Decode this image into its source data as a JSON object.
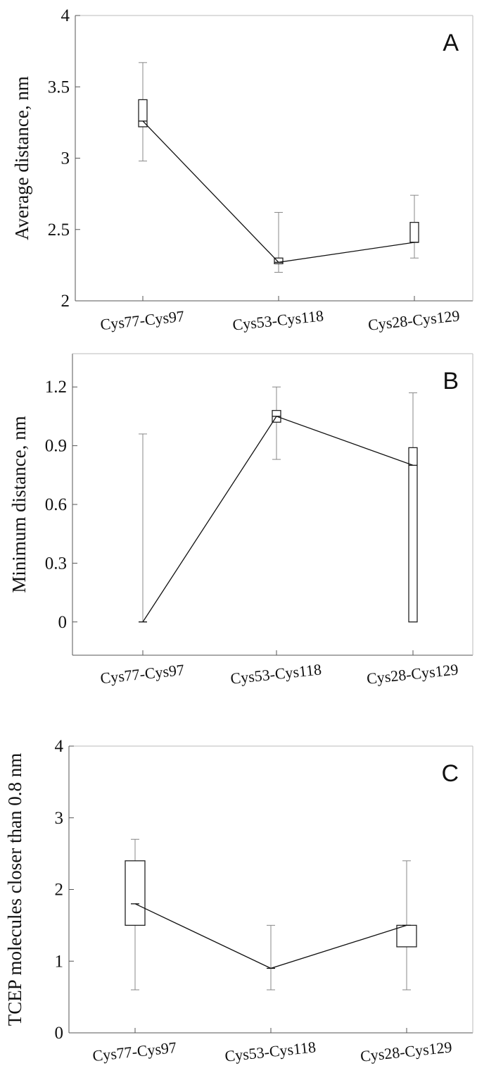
{
  "chart_data": [
    {
      "type": "box",
      "panel_label": "A",
      "ylabel": "Average distance, nm",
      "xlabel": "",
      "categories": [
        "Cys77-Cys97",
        "Cys53-Cys118",
        "Cys28-Cys129"
      ],
      "ylim": [
        2,
        4
      ],
      "yticks": [
        2,
        2.5,
        3,
        3.5,
        4
      ],
      "ytick_labels": [
        "2",
        "2.5",
        "3",
        "3.5",
        "4"
      ],
      "grid": false,
      "whisker_low": [
        2.98,
        2.2,
        2.3
      ],
      "box_low": [
        3.22,
        2.26,
        2.41
      ],
      "box_high": [
        3.41,
        2.3,
        2.55
      ],
      "whisker_high": [
        3.67,
        2.62,
        2.74
      ],
      "line_values": [
        3.26,
        2.27,
        2.41
      ]
    },
    {
      "type": "box",
      "panel_label": "B",
      "ylabel": "Minimum distance, nm",
      "xlabel": "",
      "categories": [
        "Cys77-Cys97",
        "Cys53-Cys118",
        "Cys28-Cys129"
      ],
      "ylim": [
        -0.17,
        1.37
      ],
      "yticks": [
        0,
        0.3,
        0.6,
        0.9,
        1.2
      ],
      "ytick_labels": [
        "0",
        "0.3",
        "0.6",
        "0.9",
        "1.2"
      ],
      "grid": false,
      "whisker_low": [
        0,
        0.83,
        0
      ],
      "box_low": [
        0,
        1.02,
        0
      ],
      "box_high": [
        0,
        1.08,
        0.89
      ],
      "whisker_high": [
        0.96,
        1.2,
        1.17
      ],
      "line_values": [
        0,
        1.05,
        0.8
      ]
    },
    {
      "type": "box",
      "panel_label": "C",
      "ylabel": "TCEP molecules closer than 0.8 nm",
      "xlabel": "",
      "categories": [
        "Cys77-Cys97",
        "Cys53-Cys118",
        "Cys28-Cys129"
      ],
      "ylim": [
        0,
        4
      ],
      "yticks": [
        0,
        1,
        2,
        3,
        4
      ],
      "ytick_labels": [
        "0",
        "1",
        "2",
        "3",
        "4"
      ],
      "grid": false,
      "whisker_low": [
        0.6,
        0.6,
        0.6
      ],
      "box_low": [
        1.5,
        0.9,
        1.2
      ],
      "box_high": [
        2.4,
        0.9,
        1.5
      ],
      "whisker_high": [
        2.7,
        1.5,
        2.4
      ],
      "line_values": [
        1.8,
        0.9,
        1.5
      ]
    }
  ]
}
